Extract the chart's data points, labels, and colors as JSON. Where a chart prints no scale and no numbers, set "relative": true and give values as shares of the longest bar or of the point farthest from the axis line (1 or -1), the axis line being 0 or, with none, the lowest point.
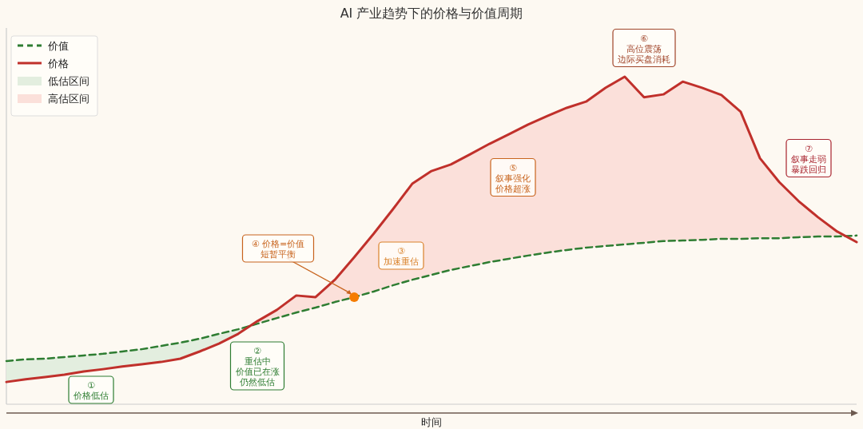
{
  "chart_data": {
    "type": "line",
    "title": "AI 产业趋势下的价格与价值周期",
    "xlabel": "时间",
    "relative": true,
    "legend": "top left",
    "marker": "none",
    "categories": [
      null,
      null,
      null,
      null,
      null,
      null,
      null,
      null,
      null,
      null,
      null,
      null,
      null,
      null,
      null,
      null,
      null,
      null,
      null,
      null,
      null,
      null,
      null,
      null,
      null,
      null,
      null,
      null,
      null,
      null,
      null,
      null,
      null,
      null,
      null,
      null,
      null,
      null,
      null,
      null,
      null,
      null,
      null,
      null,
      null
    ],
    "series": [
      {
        "name": "价值",
        "line_style": "dashed",
        "color": "#2e7d32",
        "values": [
          0.132,
          0.137,
          0.139,
          0.144,
          0.149,
          0.154,
          0.161,
          0.168,
          0.178,
          0.188,
          0.2,
          0.215,
          0.229,
          0.246,
          0.263,
          0.28,
          0.295,
          0.312,
          0.327,
          0.344,
          0.363,
          0.38,
          0.395,
          0.41,
          0.422,
          0.434,
          0.444,
          0.454,
          0.463,
          0.471,
          0.478,
          0.483,
          0.488,
          0.493,
          0.498,
          0.5,
          0.502,
          0.505,
          0.505,
          0.507,
          0.507,
          0.51,
          0.512,
          0.512,
          0.515
        ]
      },
      {
        "name": "价格",
        "line_style": "solid",
        "color": "#c0302b",
        "values": [
          0.068,
          0.076,
          0.083,
          0.09,
          0.1,
          0.107,
          0.115,
          0.122,
          0.129,
          0.139,
          0.161,
          0.185,
          0.215,
          0.254,
          0.288,
          0.332,
          0.327,
          0.38,
          0.449,
          0.52,
          0.595,
          0.673,
          0.712,
          0.732,
          0.763,
          0.795,
          0.824,
          0.854,
          0.88,
          0.905,
          0.924,
          0.966,
          1.0,
          0.937,
          0.946,
          0.985,
          0.966,
          0.944,
          0.893,
          0.751,
          0.678,
          0.62,
          0.571,
          0.527,
          0.495
        ]
      },
      {
        "name": "低估区间",
        "type": "area",
        "color": "#e3eedf",
        "values": [
          0.132,
          0.137,
          0.139,
          0.144,
          0.149,
          0.154,
          0.161,
          0.168,
          0.178,
          0.188,
          0.2,
          0.215,
          0.229,
          0.246,
          null,
          null,
          null,
          null,
          null,
          null,
          null,
          null,
          null,
          null,
          null,
          null,
          null,
          null,
          null,
          null,
          null,
          null,
          null,
          null,
          null,
          null,
          null,
          null,
          null,
          null,
          null,
          null,
          null,
          null,
          null
        ]
      },
      {
        "name": "高估区间",
        "type": "area",
        "color": "#fbe0da",
        "values": [
          null,
          null,
          null,
          null,
          null,
          null,
          null,
          null,
          null,
          null,
          null,
          null,
          null,
          0.254,
          0.288,
          0.332,
          0.327,
          0.38,
          0.449,
          0.52,
          0.595,
          0.673,
          0.712,
          0.732,
          0.763,
          0.795,
          0.824,
          0.854,
          0.88,
          0.905,
          0.924,
          0.966,
          1.0,
          0.937,
          0.946,
          0.985,
          0.966,
          0.944,
          0.893,
          0.751,
          0.678,
          0.62,
          0.571,
          0.527,
          null
        ]
      }
    ],
    "annotations": [
      "①价格低估",
      "②重估中价值已在涨仍然低估",
      "③加速重估",
      "④ 价格=价值短暂平衡",
      "⑤叙事强化价格超涨",
      "⑥高位震荡边际买盘消耗",
      "⑦叙事走弱暴跌回归"
    ]
  }
}
